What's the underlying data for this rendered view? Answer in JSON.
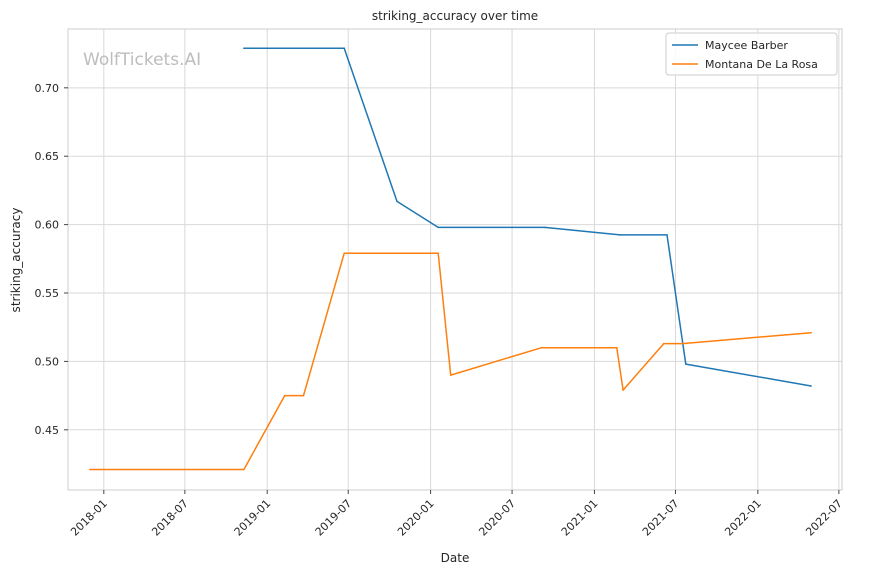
{
  "chart_data": {
    "type": "line",
    "title": "striking_accuracy over time",
    "xlabel": "Date",
    "ylabel": "striking_accuracy",
    "watermark": "WolfTickets.AI",
    "x_ticks": [
      "2018-01",
      "2018-07",
      "2019-01",
      "2019-07",
      "2020-01",
      "2020-07",
      "2021-01",
      "2021-07",
      "2022-01",
      "2022-07"
    ],
    "y_ticks": [
      "0.45",
      "0.50",
      "0.55",
      "0.60",
      "0.65",
      "0.70"
    ],
    "xlim": [
      "2017-10-13",
      "2022-07-08"
    ],
    "ylim": [
      0.406,
      0.743
    ],
    "grid": true,
    "legend_position": "top-right",
    "series": [
      {
        "name": "Maycee Barber",
        "color": "#1f77b4",
        "points": [
          {
            "x": "2018-11-10",
            "y": 0.729
          },
          {
            "x": "2019-06-22",
            "y": 0.729
          },
          {
            "x": "2019-10-18",
            "y": 0.617
          },
          {
            "x": "2020-01-18",
            "y": 0.598
          },
          {
            "x": "2020-09-12",
            "y": 0.598
          },
          {
            "x": "2021-02-27",
            "y": 0.5925
          },
          {
            "x": "2021-06-12",
            "y": 0.5925
          },
          {
            "x": "2021-07-24",
            "y": 0.498
          },
          {
            "x": "2022-04-30",
            "y": 0.482
          }
        ]
      },
      {
        "name": "Montana De La Rosa",
        "color": "#ff7f0e",
        "points": [
          {
            "x": "2017-12-01",
            "y": 0.421
          },
          {
            "x": "2018-11-10",
            "y": 0.421
          },
          {
            "x": "2019-02-09",
            "y": 0.475
          },
          {
            "x": "2019-03-23",
            "y": 0.475
          },
          {
            "x": "2019-06-22",
            "y": 0.579
          },
          {
            "x": "2020-01-18",
            "y": 0.579
          },
          {
            "x": "2020-02-15",
            "y": 0.49
          },
          {
            "x": "2020-09-05",
            "y": 0.51
          },
          {
            "x": "2021-02-20",
            "y": 0.51
          },
          {
            "x": "2021-03-06",
            "y": 0.479
          },
          {
            "x": "2021-06-05",
            "y": 0.513
          },
          {
            "x": "2021-07-17",
            "y": 0.513
          },
          {
            "x": "2022-04-30",
            "y": 0.521
          }
        ]
      }
    ]
  }
}
